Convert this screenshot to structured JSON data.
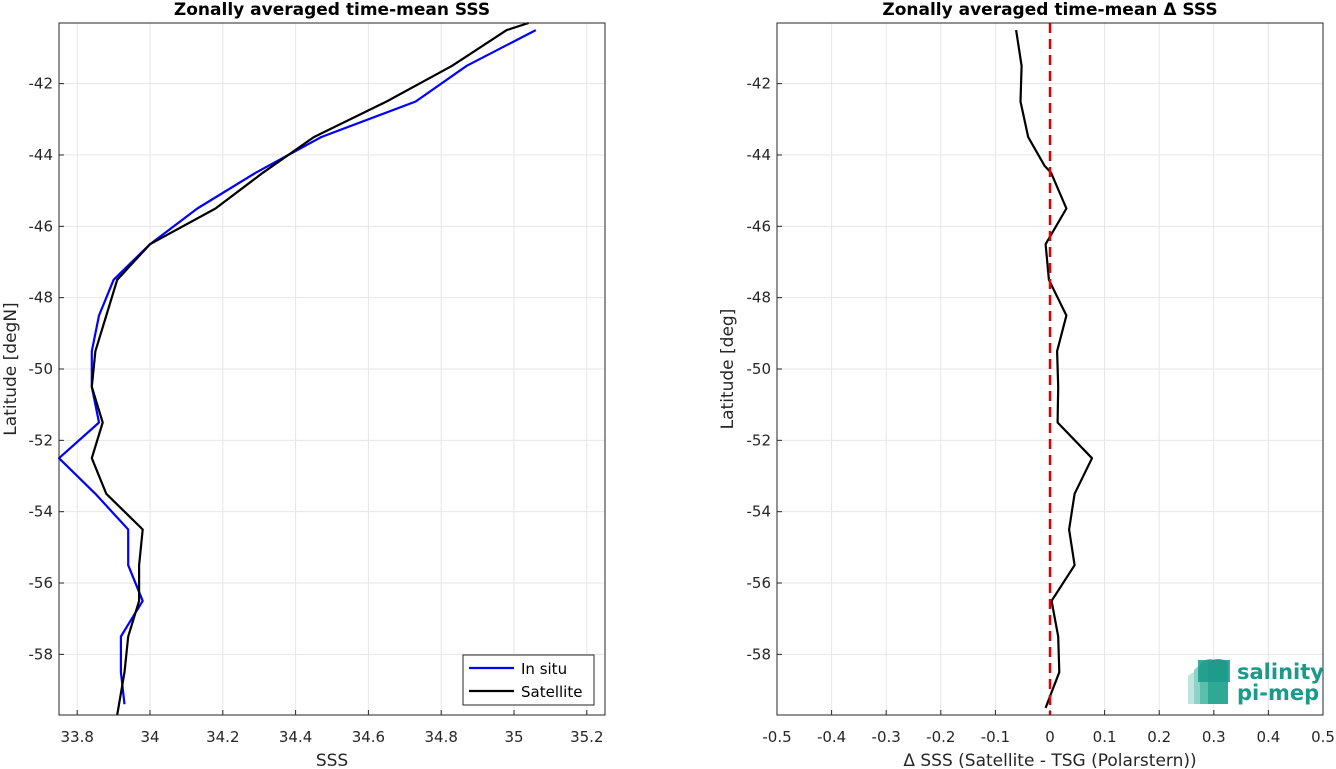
{
  "chart_data": [
    {
      "type": "line",
      "title": "Zonally averaged time-mean SSS",
      "xlabel": "SSS",
      "ylabel": "Latitude [degN]",
      "xlim": [
        33.75,
        35.25
      ],
      "ylim": [
        -59.7,
        -40.3
      ],
      "xticks": [
        33.8,
        34,
        34.2,
        34.4,
        34.6,
        34.8,
        35,
        35.2
      ],
      "xtick_labels": [
        "33.8",
        "34",
        "34.2",
        "34.4",
        "34.6",
        "34.8",
        "35",
        "35.2"
      ],
      "yticks": [
        -58,
        -56,
        -54,
        -52,
        -50,
        -48,
        -46,
        -44,
        -42
      ],
      "ytick_labels": [
        "-58",
        "-56",
        "-54",
        "-52",
        "-50",
        "-48",
        "-46",
        "-44",
        "-42"
      ],
      "grid": true,
      "legend_position": "bottom-right",
      "series": [
        {
          "name": "In situ",
          "color": "#0000ff",
          "points": [
            [
              35.06,
              -40.5
            ],
            [
              34.87,
              -41.5
            ],
            [
              34.73,
              -42.5
            ],
            [
              34.47,
              -43.5
            ],
            [
              34.29,
              -44.5
            ],
            [
              34.13,
              -45.5
            ],
            [
              34.0,
              -46.5
            ],
            [
              33.9,
              -47.5
            ],
            [
              33.86,
              -48.5
            ],
            [
              33.84,
              -49.5
            ],
            [
              33.84,
              -50.5
            ],
            [
              33.86,
              -51.5
            ],
            [
              33.75,
              -52.5
            ],
            [
              33.85,
              -53.5
            ],
            [
              33.94,
              -54.5
            ],
            [
              33.94,
              -55.5
            ],
            [
              33.98,
              -56.5
            ],
            [
              33.92,
              -57.5
            ],
            [
              33.92,
              -58.5
            ],
            [
              33.93,
              -59.4
            ]
          ]
        },
        {
          "name": "Satellite",
          "color": "#000000",
          "points": [
            [
              35.04,
              -40.3
            ],
            [
              34.98,
              -40.5
            ],
            [
              34.83,
              -41.5
            ],
            [
              34.65,
              -42.5
            ],
            [
              34.45,
              -43.5
            ],
            [
              34.31,
              -44.5
            ],
            [
              34.18,
              -45.5
            ],
            [
              34.0,
              -46.5
            ],
            [
              33.91,
              -47.5
            ],
            [
              33.88,
              -48.5
            ],
            [
              33.85,
              -49.5
            ],
            [
              33.84,
              -50.5
            ],
            [
              33.87,
              -51.5
            ],
            [
              33.84,
              -52.5
            ],
            [
              33.88,
              -53.5
            ],
            [
              33.98,
              -54.5
            ],
            [
              33.97,
              -55.5
            ],
            [
              33.97,
              -56.5
            ],
            [
              33.94,
              -57.5
            ],
            [
              33.93,
              -58.5
            ],
            [
              33.91,
              -59.7
            ]
          ]
        }
      ]
    },
    {
      "type": "line",
      "title": "Zonally averaged time-mean Δ SSS",
      "xlabel": "Δ SSS (Satellite - TSG (Polarstern))",
      "ylabel": "Latitude [deg]",
      "xlim": [
        -0.5,
        0.5
      ],
      "ylim": [
        -59.7,
        -40.3
      ],
      "xticks": [
        -0.5,
        -0.4,
        -0.3,
        -0.2,
        -0.1,
        0,
        0.1,
        0.2,
        0.3,
        0.4,
        0.5
      ],
      "xtick_labels": [
        "-0.5",
        "-0.4",
        "-0.3",
        "-0.2",
        "-0.1",
        "0",
        "0.1",
        "0.2",
        "0.3",
        "0.4",
        "0.5"
      ],
      "yticks": [
        -58,
        -56,
        -54,
        -52,
        -50,
        -48,
        -46,
        -44,
        -42
      ],
      "ytick_labels": [
        "-58",
        "-56",
        "-54",
        "-52",
        "-50",
        "-48",
        "-46",
        "-44",
        "-42"
      ],
      "grid": true,
      "zero_line": {
        "x": 0,
        "color": "#e00000",
        "style": "dashed"
      },
      "series": [
        {
          "color": "#000000",
          "points": [
            [
              -0.062,
              -40.5
            ],
            [
              -0.052,
              -41.5
            ],
            [
              -0.054,
              -42.5
            ],
            [
              -0.04,
              -43.5
            ],
            [
              -0.01,
              -44.3
            ],
            [
              0.002,
              -44.5
            ],
            [
              0.03,
              -45.5
            ],
            [
              -0.008,
              -46.5
            ],
            [
              -0.002,
              -47.5
            ],
            [
              0.03,
              -48.5
            ],
            [
              0.013,
              -49.5
            ],
            [
              0.015,
              -50.5
            ],
            [
              0.014,
              -51.5
            ],
            [
              0.077,
              -52.5
            ],
            [
              0.045,
              -53.5
            ],
            [
              0.035,
              -54.5
            ],
            [
              0.045,
              -55.5
            ],
            [
              0.003,
              -56.5
            ],
            [
              0.015,
              -57.5
            ],
            [
              0.017,
              -58.5
            ],
            [
              -0.008,
              -59.5
            ]
          ]
        }
      ]
    }
  ],
  "logo": {
    "line1": "salinity",
    "line2": "pi-mep",
    "color": "#1a9a8a"
  }
}
